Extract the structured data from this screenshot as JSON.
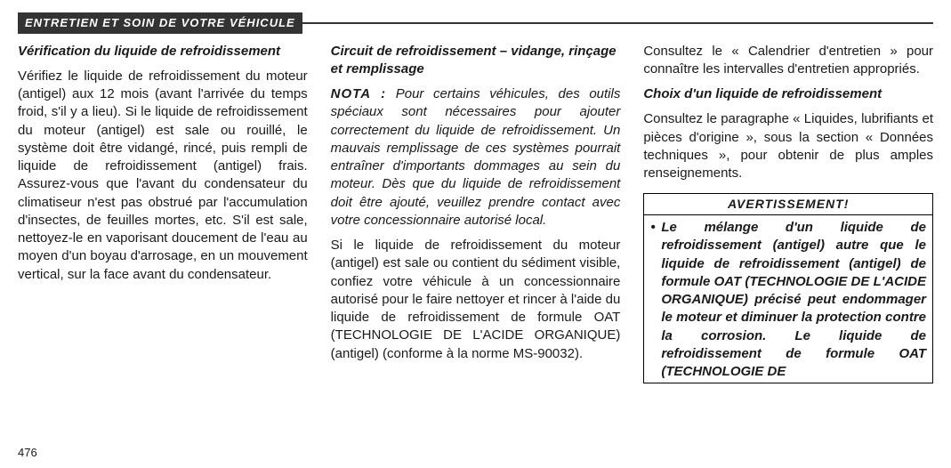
{
  "section_header": "ENTRETIEN ET SOIN DE VOTRE VÉHICULE",
  "page_number": "476",
  "col1": {
    "heading": "Vérification du liquide de refroidissement",
    "p1": "Vérifiez le liquide de refroidissement du moteur (antigel) aux 12 mois (avant l'arrivée du temps froid, s'il y a lieu). Si le liquide de refroidissement du moteur (antigel) est sale ou rouillé, le système doit être vidangé, rincé, puis rempli de liquide de refroidissement (antigel) frais. Assurez-vous que l'avant du condensateur du climatiseur n'est pas obstrué par l'accumulation d'insectes, de feuilles mortes, etc. S'il est sale, nettoyez-le en vaporisant doucement de l'eau au moyen d'un boyau d'arrosage, en un mouvement vertical, sur la face avant du condensateur."
  },
  "col2": {
    "heading": "Circuit de refroidissement – vidange, rinçage et remplissage",
    "nota_label": "NOTA :",
    "nota_body": " Pour certains véhicules, des outils spéciaux sont nécessaires pour ajouter correctement du liquide de refroidissement. Un mauvais remplissage de ces systèmes pourrait entraîner d'importants dommages au sein du moteur. Dès que du liquide de refroidissement doit être ajouté, veuillez prendre contact avec votre concessionnaire autorisé local.",
    "p2": "Si le liquide de refroidissement du moteur (antigel) est sale ou contient du sédiment visible, confiez votre véhicule à un concessionnaire autorisé pour le faire nettoyer et rincer à l'aide du liquide de refroidissement de formule OAT (TECHNOLOGIE DE L'ACIDE ORGANIQUE) (antigel) (conforme à la norme MS-90032)."
  },
  "col3": {
    "p1": "Consultez le « Calendrier d'entretien » pour connaître les intervalles d'entretien appropriés.",
    "heading2": "Choix d'un liquide de refroidissement",
    "p2": "Consultez le paragraphe « Liquides, lubrifiants et pièces d'origine », sous la section « Données techniques », pour obtenir de plus amples renseignements.",
    "warn_title": "AVERTISSEMENT!",
    "warn_item": "Le mélange d'un liquide de refroidissement (antigel) autre que le liquide de refroidissement (antigel) de formule OAT (TECHNOLOGIE DE L'ACIDE ORGANIQUE) précisé peut endommager le moteur et diminuer la protection contre la corrosion. Le liquide de refroidissement de formule OAT (TECHNOLOGIE DE"
  }
}
